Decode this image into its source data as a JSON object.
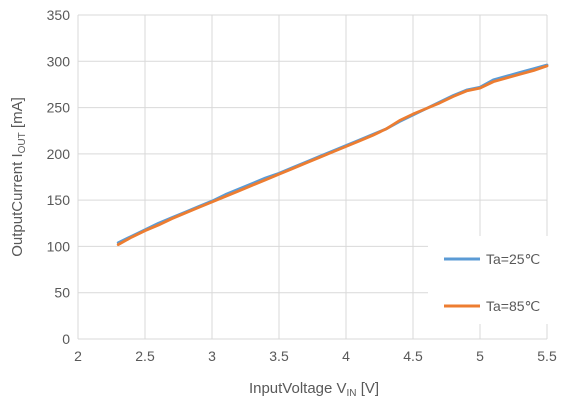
{
  "chart_data": {
    "type": "line",
    "xlabel": {
      "main": "InputVoltage  V",
      "sub": "IN",
      "unit": " [V]"
    },
    "ylabel": {
      "main": "OutputCurrent  I",
      "sub": "OUT",
      "unit": " [mA]"
    },
    "xlim": [
      2,
      5.5
    ],
    "ylim": [
      0,
      350
    ],
    "xticks": [
      "2",
      "2.5",
      "3",
      "3.5",
      "4",
      "4.5",
      "5",
      "5.5"
    ],
    "yticks": [
      "0",
      "50",
      "100",
      "150",
      "200",
      "250",
      "300",
      "350"
    ],
    "grid": true,
    "legend_position": "bottom-right",
    "series": [
      {
        "name": "Ta=25℃",
        "color": "#5B9BD5",
        "x": [
          2.3,
          2.4,
          2.5,
          2.6,
          2.7,
          2.8,
          2.9,
          3.0,
          3.1,
          3.2,
          3.3,
          3.4,
          3.5,
          3.6,
          3.7,
          3.8,
          3.9,
          4.0,
          4.1,
          4.2,
          4.3,
          4.4,
          4.5,
          4.6,
          4.7,
          4.8,
          4.9,
          5.0,
          5.1,
          5.2,
          5.3,
          5.4,
          5.5
        ],
        "values": [
          104,
          111,
          118,
          125,
          131,
          137,
          143,
          149,
          156,
          162,
          168,
          174,
          179,
          185,
          191,
          197,
          203,
          209,
          215,
          221,
          227,
          235,
          242,
          249,
          256,
          263,
          269,
          272,
          280,
          284,
          288,
          292,
          296
        ]
      },
      {
        "name": "Ta=85℃",
        "color": "#ED7D31",
        "x": [
          2.3,
          2.4,
          2.5,
          2.6,
          2.7,
          2.8,
          2.9,
          3.0,
          3.1,
          3.2,
          3.3,
          3.4,
          3.5,
          3.6,
          3.7,
          3.8,
          3.9,
          4.0,
          4.1,
          4.2,
          4.3,
          4.4,
          4.5,
          4.6,
          4.7,
          4.8,
          4.9,
          5.0,
          5.1,
          5.2,
          5.3,
          5.4,
          5.5
        ],
        "values": [
          102,
          110,
          117,
          123,
          130,
          136,
          142,
          148,
          154,
          160,
          166,
          172,
          178,
          184,
          190,
          196,
          202,
          208,
          214,
          220,
          227,
          236,
          243,
          249,
          255,
          262,
          268,
          271,
          278,
          282,
          286,
          290,
          295
        ]
      }
    ]
  }
}
